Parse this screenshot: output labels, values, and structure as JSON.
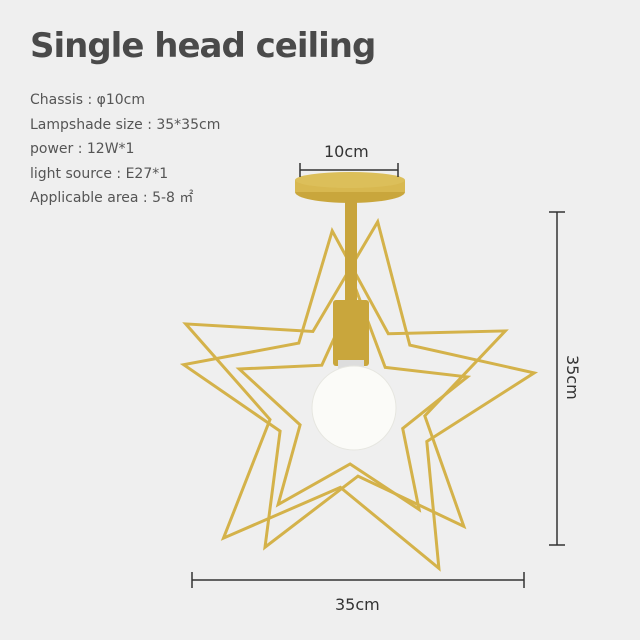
{
  "title": "Single head ceiling",
  "specs": [
    "Chassis : φ10cm",
    "Lampshade size : 35*35cm",
    "power : 12W*1",
    "light source : E27*1",
    "Applicable area : 5-8 ㎡"
  ],
  "dimensions": {
    "chassis_width": "10cm",
    "height": "35cm",
    "width": "35cm"
  },
  "colors": {
    "gold": "#d4b24a",
    "background": "#efefef"
  }
}
